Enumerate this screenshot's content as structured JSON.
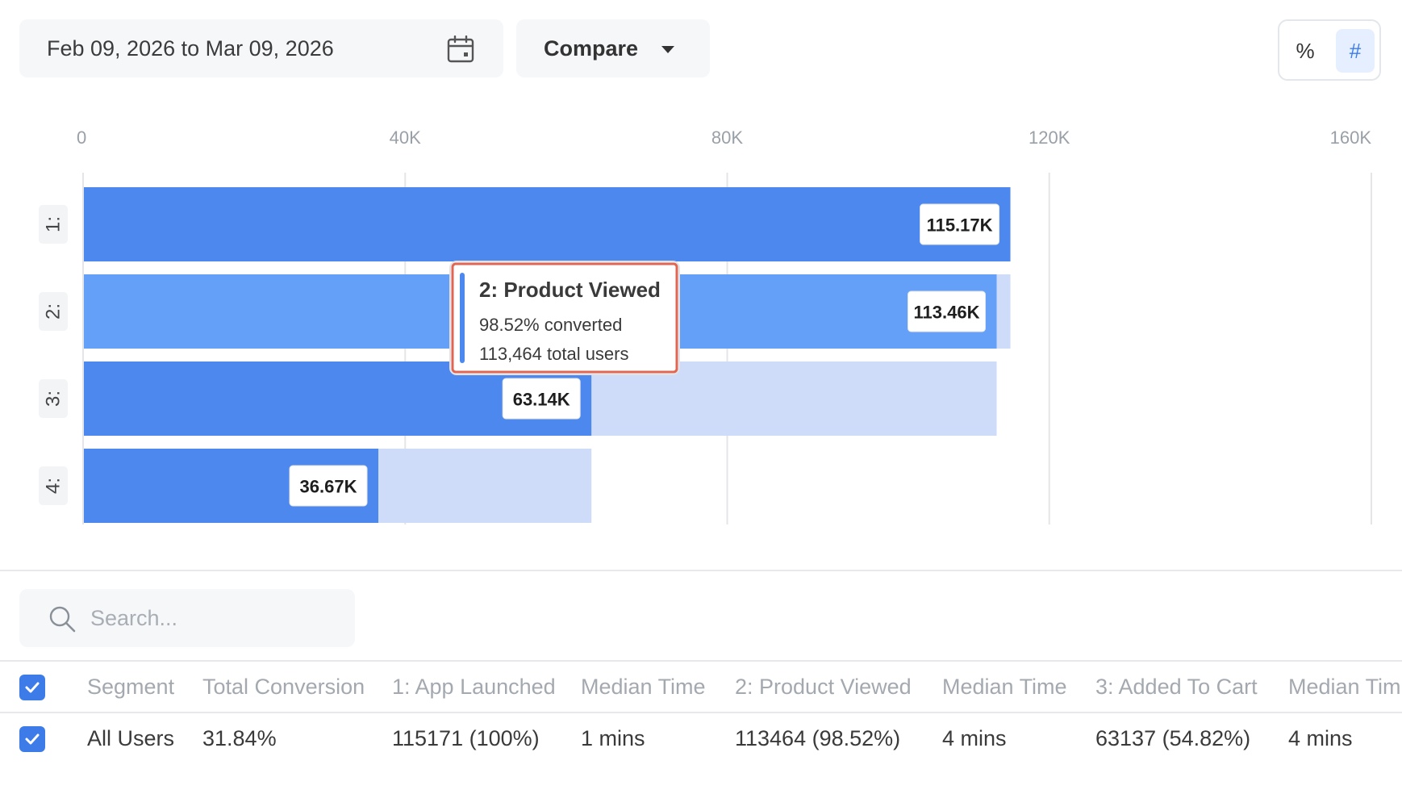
{
  "toolbar": {
    "date_range": "Feb 09, 2026 to Mar 09, 2026",
    "calendar_icon": "calendar-icon",
    "compare_label": "Compare",
    "mode_percent": "%",
    "mode_count": "#",
    "mode_selected": "#"
  },
  "chart_data": {
    "type": "bar",
    "orientation": "horizontal",
    "x_ticks": [
      "0",
      "40K",
      "80K",
      "120K",
      "160K"
    ],
    "xlim": [
      0,
      160000
    ],
    "grid": true,
    "categories": [
      "1:",
      "2:",
      "3:",
      "4:"
    ],
    "values": [
      115171,
      113464,
      63137,
      36670
    ],
    "value_labels": [
      "115.17K",
      "113.46K",
      "63.14K",
      "36.67K"
    ],
    "colors": {
      "primary": "#4d88ef",
      "hovered": "#64a0f7",
      "dropoff": "#cedcfa",
      "grid": "#e3e5e8"
    },
    "hovered_index": 1,
    "tooltip": {
      "title": "2: Product Viewed",
      "line1": "98.52% converted",
      "line2": "113,464 total users"
    }
  },
  "search": {
    "placeholder": "Search...",
    "icon": "search-icon"
  },
  "table": {
    "headers": [
      "Segment",
      "Total Conversion",
      "1: App Launched",
      "Median Time",
      "2: Product Viewed",
      "Median Time",
      "3: Added To Cart",
      "Median Tim"
    ],
    "rows": [
      {
        "checked": true,
        "cells": [
          "All Users",
          "31.84%",
          "115171 (100%)",
          "1 mins",
          "113464 (98.52%)",
          "4 mins",
          "63137 (54.82%)",
          "4 mins"
        ]
      }
    ]
  }
}
